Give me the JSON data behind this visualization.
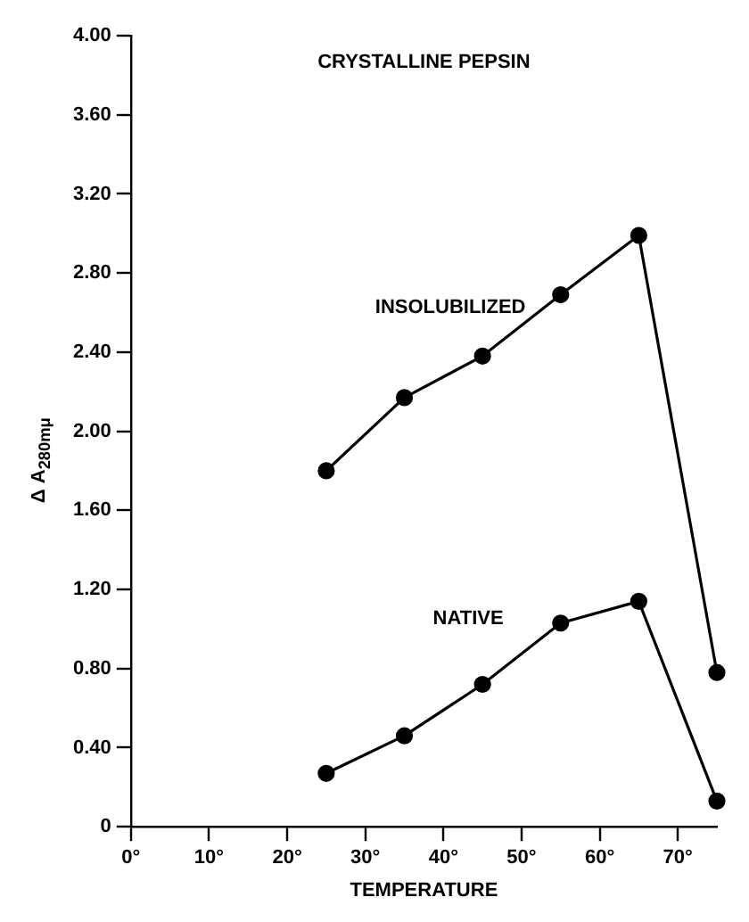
{
  "chart_data": {
    "type": "line",
    "title": "CRYSTALLINE PEPSIN",
    "xlabel": "TEMPERATURE",
    "ylabel": "Δ A$_{280mμ}$",
    "xlim": [
      0,
      75
    ],
    "xticks": [
      {
        "value": 0,
        "label": "0°"
      },
      {
        "value": 10,
        "label": "10°"
      },
      {
        "value": 20,
        "label": "20°"
      },
      {
        "value": 30,
        "label": "30°"
      },
      {
        "value": 40,
        "label": "40°"
      },
      {
        "value": 50,
        "label": "50°"
      },
      {
        "value": 60,
        "label": "60°"
      },
      {
        "value": 70,
        "label": "70°"
      }
    ],
    "ylim": [
      0,
      4
    ],
    "yticks": [
      0,
      {
        "value": 0.4,
        "label": "0.40"
      },
      {
        "value": 0.8,
        "label": "0.80"
      },
      {
        "value": 1.2,
        "label": "1.20"
      },
      {
        "value": 1.6,
        "label": "1.60"
      },
      {
        "value": 2,
        "label": "2.00"
      },
      {
        "value": 2.4,
        "label": "2.40"
      },
      {
        "value": 2.8,
        "label": "2.80"
      },
      {
        "value": 3.2,
        "label": "3.20"
      },
      {
        "value": 3.6,
        "label": "3.60"
      },
      {
        "value": 4,
        "label": "4.00"
      }
    ],
    "grid": false,
    "legend": false,
    "marker": "circle",
    "line_style": "solid",
    "series": [
      {
        "name": "INSOLUBILIZED",
        "color": "#000000",
        "x": [
          25,
          35,
          45,
          55,
          65,
          75
        ],
        "values": [
          1.8,
          2.17,
          2.38,
          2.69,
          2.99,
          0.78
        ]
      },
      {
        "name": "NATIVE",
        "color": "#000000",
        "x": [
          25,
          35,
          45,
          55,
          65,
          75
        ],
        "values": [
          0.27,
          0.46,
          0.72,
          1.03,
          1.14,
          0.13
        ]
      }
    ]
  }
}
